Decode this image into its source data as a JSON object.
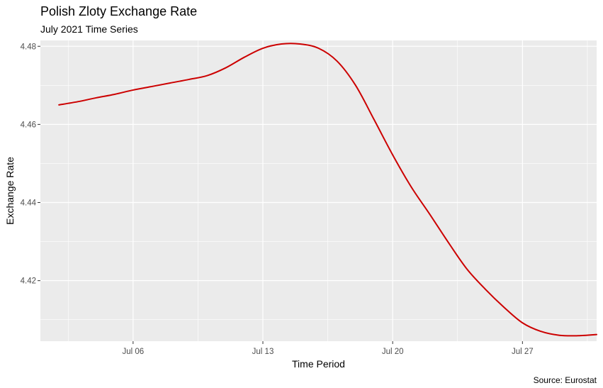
{
  "chart_data": {
    "type": "line",
    "title": "Polish Zloty Exchange Rate",
    "subtitle": "July 2021 Time Series",
    "xlabel": "Time Period",
    "ylabel": "Exchange Rate",
    "caption": "Source: Eurostat",
    "x_ticks": [
      "Jul 06",
      "Jul 13",
      "Jul 20",
      "Jul 27"
    ],
    "y_ticks": [
      "4.42",
      "4.44",
      "4.46",
      "4.48"
    ],
    "xlim": [
      "2021-07-01",
      "2021-07-31"
    ],
    "ylim": [
      4.4045,
      4.4815
    ],
    "grid": true,
    "series": [
      {
        "color": "#cc0000",
        "x": [
          "2021-07-02",
          "2021-07-03",
          "2021-07-04",
          "2021-07-05",
          "2021-07-06",
          "2021-07-07",
          "2021-07-08",
          "2021-07-09",
          "2021-07-10",
          "2021-07-11",
          "2021-07-12",
          "2021-07-13",
          "2021-07-14",
          "2021-07-15",
          "2021-07-16",
          "2021-07-17",
          "2021-07-18",
          "2021-07-19",
          "2021-07-20",
          "2021-07-21",
          "2021-07-22",
          "2021-07-23",
          "2021-07-24",
          "2021-07-25",
          "2021-07-26",
          "2021-07-27",
          "2021-07-28",
          "2021-07-29",
          "2021-07-30",
          "2021-07-31"
        ],
        "values": [
          4.465,
          4.4658,
          4.4668,
          4.4677,
          4.4688,
          4.4697,
          4.4706,
          4.4715,
          4.4725,
          4.4745,
          4.4772,
          4.4795,
          4.4806,
          4.4806,
          4.4795,
          4.4762,
          4.47,
          4.4612,
          4.4522,
          4.444,
          4.437,
          4.4298,
          4.423,
          4.4178,
          4.4132,
          4.4092,
          4.407,
          4.406,
          4.4059,
          4.4062
        ]
      }
    ]
  }
}
